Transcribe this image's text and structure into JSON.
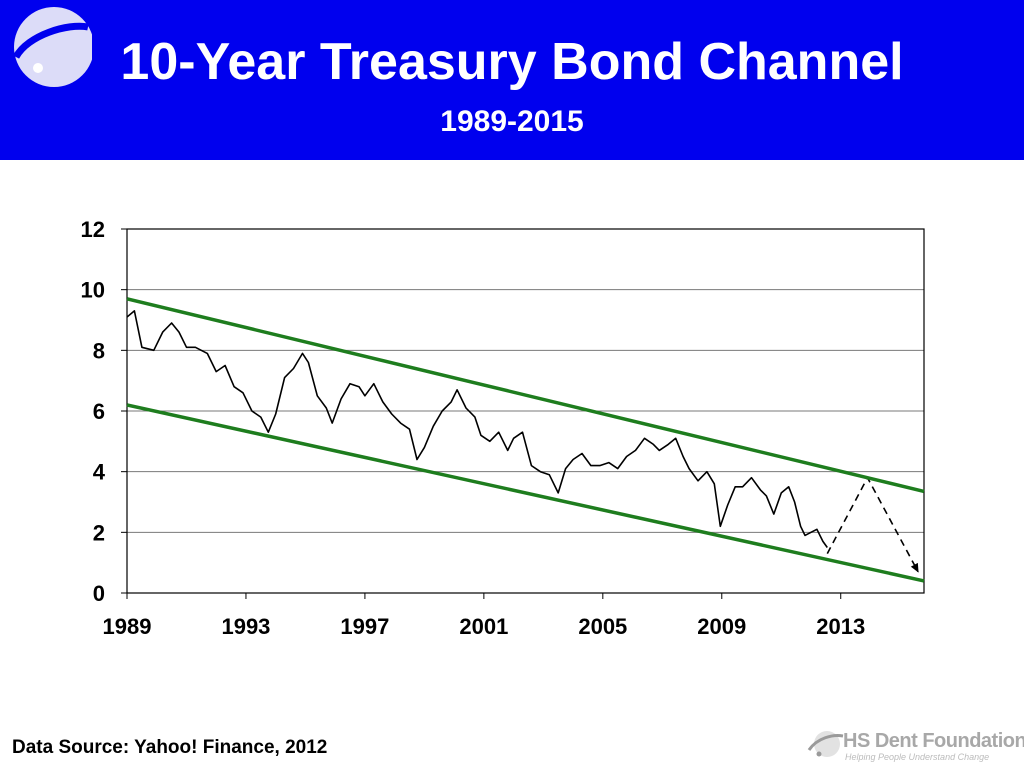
{
  "header": {
    "title": "10-Year Treasury Bond Channel",
    "subtitle": "1989-2015",
    "background_color": "#0000ee",
    "logo_icon": "orbit-logo-icon"
  },
  "footer": {
    "source": "Data Source: Yahoo! Finance, 2012",
    "logo_name": "HS Dent Foundation",
    "logo_tagline": "Helping People Understand Change",
    "logo_icon": "orbit-logo-icon"
  },
  "chart_data": {
    "type": "line",
    "title": "",
    "xlabel": "",
    "ylabel": "",
    "xlim": [
      1989,
      2015.8
    ],
    "ylim": [
      0,
      12
    ],
    "x_ticks": [
      1989,
      1993,
      1997,
      2001,
      2005,
      2009,
      2013
    ],
    "y_ticks": [
      0,
      2,
      4,
      6,
      8,
      10,
      12
    ],
    "grid": "horizontal",
    "legend": "none",
    "series": [
      {
        "name": "",
        "style": "solid",
        "color": "#000000",
        "x": [
          1989.0,
          1989.25,
          1989.5,
          1989.9,
          1990.2,
          1990.5,
          1990.75,
          1991.0,
          1991.3,
          1991.7,
          1992.0,
          1992.3,
          1992.6,
          1992.9,
          1993.2,
          1993.5,
          1993.75,
          1994.0,
          1994.3,
          1994.6,
          1994.9,
          1995.1,
          1995.4,
          1995.7,
          1995.9,
          1996.2,
          1996.5,
          1996.8,
          1997.0,
          1997.3,
          1997.6,
          1997.9,
          1998.2,
          1998.5,
          1998.75,
          1999.0,
          1999.3,
          1999.6,
          1999.9,
          2000.1,
          2000.4,
          2000.7,
          2000.9,
          2001.2,
          2001.5,
          2001.8,
          2002.0,
          2002.3,
          2002.6,
          2002.9,
          2003.2,
          2003.5,
          2003.75,
          2004.0,
          2004.3,
          2004.6,
          2004.9,
          2005.2,
          2005.5,
          2005.8,
          2006.1,
          2006.4,
          2006.7,
          2006.9,
          2007.2,
          2007.45,
          2007.7,
          2007.9,
          2008.2,
          2008.5,
          2008.75,
          2008.95,
          2009.2,
          2009.45,
          2009.7,
          2010.0,
          2010.3,
          2010.5,
          2010.75,
          2011.0,
          2011.25,
          2011.45,
          2011.65,
          2011.8,
          2012.0,
          2012.2,
          2012.4,
          2012.55
        ],
        "y": [
          9.1,
          9.3,
          8.1,
          8.0,
          8.6,
          8.9,
          8.6,
          8.1,
          8.1,
          7.9,
          7.3,
          7.5,
          6.8,
          6.6,
          6.0,
          5.8,
          5.3,
          5.9,
          7.1,
          7.4,
          7.9,
          7.6,
          6.5,
          6.1,
          5.6,
          6.4,
          6.9,
          6.8,
          6.5,
          6.9,
          6.3,
          5.9,
          5.6,
          5.4,
          4.4,
          4.8,
          5.5,
          6.0,
          6.3,
          6.7,
          6.1,
          5.8,
          5.2,
          5.0,
          5.3,
          4.7,
          5.1,
          5.3,
          4.2,
          4.0,
          3.9,
          3.3,
          4.1,
          4.4,
          4.6,
          4.2,
          4.2,
          4.3,
          4.1,
          4.5,
          4.7,
          5.1,
          4.9,
          4.7,
          4.9,
          5.1,
          4.5,
          4.1,
          3.7,
          4.0,
          3.6,
          2.2,
          2.9,
          3.5,
          3.5,
          3.8,
          3.4,
          3.2,
          2.6,
          3.3,
          3.5,
          3.0,
          2.2,
          1.9,
          2.0,
          2.1,
          1.7,
          1.5
        ]
      },
      {
        "name": "",
        "style": "dashed",
        "color": "#000000",
        "x": [
          2012.55,
          2013.9,
          2015.6
        ],
        "y": [
          1.3,
          3.8,
          0.7
        ]
      },
      {
        "name": "",
        "style": "channel-upper",
        "color": "#1e7d1e",
        "x": [
          1989.0,
          2015.8
        ],
        "y": [
          9.7,
          3.35
        ]
      },
      {
        "name": "",
        "style": "channel-lower",
        "color": "#1e7d1e",
        "x": [
          1989.0,
          2015.8
        ],
        "y": [
          6.2,
          0.4
        ]
      }
    ]
  }
}
